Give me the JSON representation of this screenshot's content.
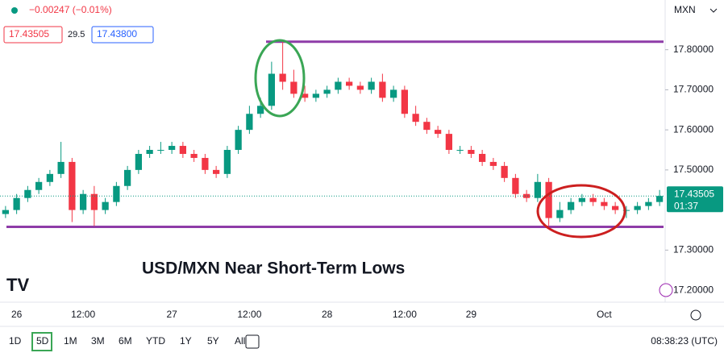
{
  "chart_data": {
    "type": "candlestick",
    "header": {
      "change": "−0.00247 (−0.01%)",
      "bid": "17.43505",
      "spread": "29.5",
      "ask": "17.43800",
      "symbol": "MXN"
    },
    "annotation": "USD/MXN Near Short-Term Lows",
    "price_tag": {
      "label": "17.43505",
      "countdown": "01:37"
    },
    "timeframes": [
      "1D",
      "5D",
      "1M",
      "3M",
      "6M",
      "YTD",
      "1Y",
      "5Y",
      "All"
    ],
    "active_timeframe": 1,
    "clock": "08:38:23 (UTC)",
    "categories": [
      null,
      "26",
      null,
      null,
      null,
      null,
      null,
      "12:00",
      null,
      null,
      null,
      null,
      null,
      null,
      null,
      "27",
      null,
      null,
      null,
      null,
      null,
      null,
      "12:00",
      null,
      null,
      null,
      null,
      null,
      null,
      "28",
      null,
      null,
      null,
      null,
      null,
      null,
      "12:00",
      null,
      null,
      null,
      null,
      null,
      "29",
      null,
      null,
      null,
      null,
      null,
      null,
      null,
      null,
      null,
      null,
      null,
      "Oct",
      null,
      null,
      null,
      null,
      null
    ],
    "open": [
      17.39,
      17.4,
      17.43,
      17.45,
      17.47,
      17.49,
      17.52,
      17.4,
      17.44,
      17.4,
      17.42,
      17.46,
      17.5,
      17.54,
      17.55,
      17.55,
      17.56,
      17.54,
      17.53,
      17.5,
      17.49,
      17.55,
      17.6,
      17.64,
      17.66,
      17.74,
      17.72,
      17.69,
      17.68,
      17.69,
      17.7,
      17.72,
      17.71,
      17.7,
      17.72,
      17.68,
      17.7,
      17.64,
      17.62,
      17.6,
      17.59,
      17.55,
      17.55,
      17.54,
      17.52,
      17.51,
      17.48,
      17.44,
      17.43,
      17.47,
      17.38,
      17.4,
      17.42,
      17.43,
      17.42,
      17.41,
      17.4,
      17.4,
      17.41,
      17.42
    ],
    "high": [
      17.41,
      17.44,
      17.46,
      17.48,
      17.5,
      17.57,
      17.53,
      17.45,
      17.46,
      17.43,
      17.47,
      17.51,
      17.55,
      17.56,
      17.57,
      17.57,
      17.57,
      17.55,
      17.54,
      17.51,
      17.56,
      17.61,
      17.66,
      17.68,
      17.77,
      17.82,
      17.75,
      17.71,
      17.7,
      17.71,
      17.73,
      17.73,
      17.72,
      17.73,
      17.74,
      17.71,
      17.71,
      17.66,
      17.63,
      17.61,
      17.6,
      17.56,
      17.56,
      17.55,
      17.53,
      17.52,
      17.49,
      17.45,
      17.49,
      17.48,
      17.42,
      17.43,
      17.44,
      17.44,
      17.43,
      17.42,
      17.41,
      17.42,
      17.43,
      17.45
    ],
    "low": [
      17.38,
      17.39,
      17.42,
      17.44,
      17.46,
      17.48,
      17.37,
      17.39,
      17.36,
      17.39,
      17.41,
      17.45,
      17.49,
      17.53,
      17.54,
      17.54,
      17.53,
      17.52,
      17.49,
      17.48,
      17.48,
      17.54,
      17.59,
      17.63,
      17.65,
      17.7,
      17.68,
      17.67,
      17.67,
      17.68,
      17.69,
      17.7,
      17.69,
      17.69,
      17.67,
      17.67,
      17.63,
      17.61,
      17.59,
      17.58,
      17.54,
      17.54,
      17.53,
      17.51,
      17.5,
      17.47,
      17.43,
      17.42,
      17.42,
      17.36,
      17.37,
      17.39,
      17.41,
      17.41,
      17.4,
      17.39,
      17.38,
      17.39,
      17.4,
      17.41
    ],
    "close": [
      17.4,
      17.43,
      17.45,
      17.47,
      17.49,
      17.52,
      17.4,
      17.44,
      17.4,
      17.42,
      17.46,
      17.5,
      17.54,
      17.55,
      17.55,
      17.56,
      17.54,
      17.53,
      17.5,
      17.49,
      17.55,
      17.6,
      17.64,
      17.66,
      17.74,
      17.72,
      17.69,
      17.68,
      17.69,
      17.7,
      17.72,
      17.71,
      17.7,
      17.72,
      17.68,
      17.7,
      17.64,
      17.62,
      17.6,
      17.59,
      17.55,
      17.55,
      17.54,
      17.52,
      17.51,
      17.48,
      17.44,
      17.43,
      17.47,
      17.38,
      17.4,
      17.42,
      17.43,
      17.42,
      17.41,
      17.4,
      17.4,
      17.41,
      17.42,
      17.435
    ],
    "up_color": "#089981",
    "down_color": "#f23645",
    "hlines": [
      {
        "value": 17.82,
        "color": "#8e3ca8"
      },
      {
        "value": 17.358,
        "color": "#8e3ca8"
      }
    ],
    "ylim": [
      17.17,
      17.924
    ],
    "yticks": [
      {
        "value": 17.2,
        "label": "17.20000"
      },
      {
        "value": 17.3,
        "label": "17.30000"
      },
      {
        "value": 17.5,
        "label": "17.50000"
      },
      {
        "value": 17.6,
        "label": "17.60000"
      },
      {
        "value": 17.7,
        "label": "17.70000"
      },
      {
        "value": 17.8,
        "label": "17.80000"
      }
    ]
  }
}
